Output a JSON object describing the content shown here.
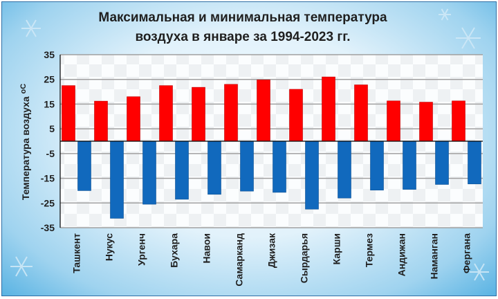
{
  "chart_data": {
    "type": "bar",
    "title": [
      "Максимальная  и минимальная температура",
      "воздуха в январе за 1994-2023 гг."
    ],
    "ylabel": "Температура воздуха",
    "yunit": "oC",
    "ylim": [
      -35,
      35
    ],
    "yticks": [
      35,
      25,
      15,
      5,
      -5,
      -15,
      -25,
      -35
    ],
    "grid": true,
    "categories": [
      "Ташкент",
      "Нукус",
      "Ургенч",
      "Бухара",
      "Навои",
      "Самарканд",
      "Джизак",
      "Сырдарья",
      "Карши",
      "Термез",
      "Андижан",
      "Наманган",
      "Фергана"
    ],
    "series": [
      {
        "values": [
          22.5,
          16.2,
          18.0,
          22.5,
          21.8,
          23.0,
          24.8,
          21.0,
          26.0,
          22.8,
          16.3,
          15.8,
          16.3
        ],
        "color": "#ff0000"
      },
      {
        "values": [
          -20.0,
          -31.2,
          -25.5,
          -23.5,
          -21.5,
          -20.2,
          -20.7,
          -27.5,
          -23.0,
          -19.8,
          -19.5,
          -17.5,
          -17.3
        ],
        "color": "#1169bd"
      }
    ]
  },
  "colors": {
    "max": "#ff0000",
    "min": "#1169bd",
    "grid": "#a0a0a0",
    "plot_bg": "#ffffff"
  }
}
